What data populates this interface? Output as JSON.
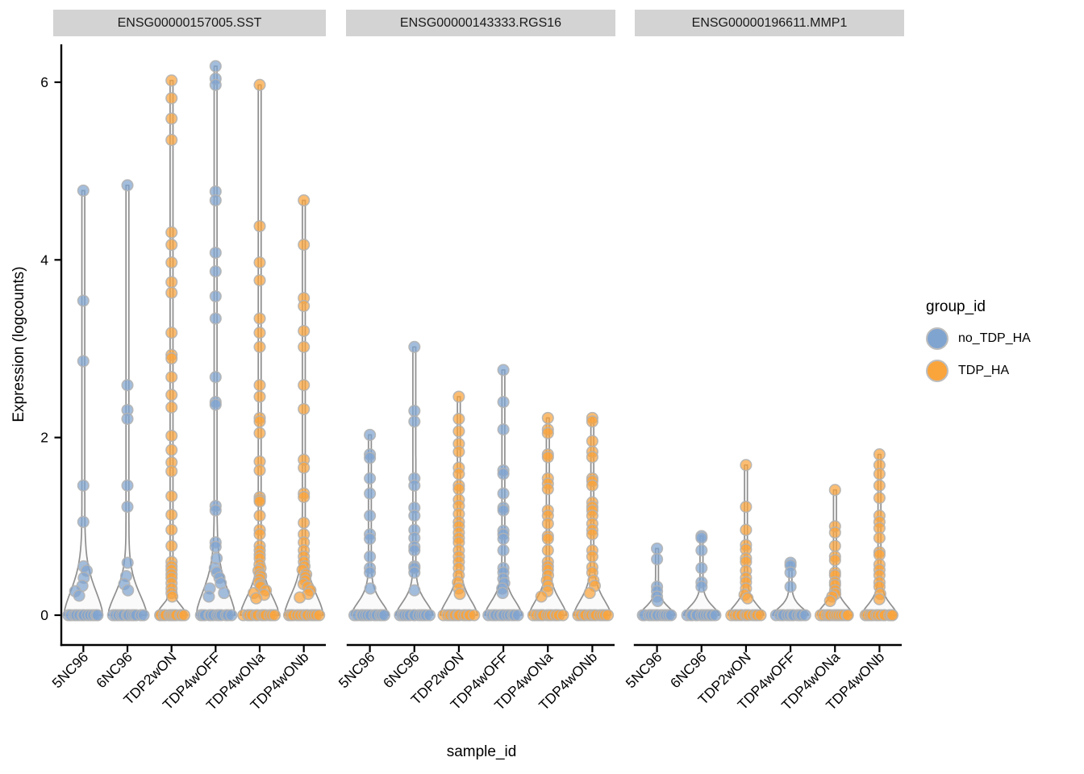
{
  "axes": {
    "x_title": "sample_id",
    "y_title": "Expression (logcounts)",
    "y_ticks": [
      0,
      2,
      4,
      6
    ],
    "x_categories": [
      "5NC96",
      "6NC96",
      "TDP2wON",
      "TDP4wOFF",
      "TDP4wONa",
      "TDP4wONb"
    ]
  },
  "legend": {
    "title": "group_id",
    "items": [
      {
        "label": "no_TDP_HA",
        "color": "#80A4D0"
      },
      {
        "label": "TDP_HA",
        "color": "#FAA43C"
      }
    ]
  },
  "style": {
    "violin_fill": "#FAFAFA",
    "violin_stroke": "#8F8F8F",
    "point_stroke": "#B3B3B3",
    "axis_color": "#000000",
    "strip_bg": "#D3D3D3"
  },
  "chart_data": {
    "type": "violin",
    "subtype": "violin with jittered points, faceted by gene",
    "x_label": "sample_id",
    "y_label": "Expression (logcounts)",
    "ylim": [
      0,
      6.4
    ],
    "y_ticks": [
      0,
      2,
      4,
      6
    ],
    "legend_position": "right",
    "facets": [
      {
        "gene": "ENSG00000157005.SST",
        "violins": [
          {
            "sample": "5NC96",
            "group": "no_TDP_HA",
            "zero_count": 12,
            "shape": {
              "max_halfwidth": 24,
              "taper": 0.42
            },
            "values": [
              4.78,
              3.54,
              2.86,
              1.46,
              1.05,
              0.55,
              0.5,
              0.42,
              0.33,
              0.27,
              0.22
            ]
          },
          {
            "sample": "6NC96",
            "group": "no_TDP_HA",
            "zero_count": 12,
            "shape": {
              "max_halfwidth": 24,
              "taper": 0.36
            },
            "values": [
              4.84,
              2.59,
              2.31,
              2.21,
              1.46,
              1.22,
              0.59,
              0.44,
              0.35,
              0.28
            ]
          },
          {
            "sample": "TDP2wON",
            "group": "TDP_HA",
            "zero_count": 12,
            "shape": {
              "max_halfwidth": 20,
              "taper": 0.14
            },
            "values": [
              6.02,
              5.82,
              5.59,
              5.35,
              4.31,
              4.17,
              3.97,
              3.75,
              3.63,
              3.18,
              2.93,
              2.89,
              2.68,
              2.48,
              2.34,
              2.02,
              1.86,
              1.72,
              1.62,
              1.34,
              1.13,
              0.96,
              0.78,
              0.6,
              0.55,
              0.51,
              0.46,
              0.42,
              0.36,
              0.3,
              0.25,
              0.21
            ]
          },
          {
            "sample": "TDP4wOFF",
            "group": "no_TDP_HA",
            "zero_count": 12,
            "shape": {
              "max_halfwidth": 24,
              "taper": 0.42
            },
            "values": [
              6.18,
              6.04,
              5.97,
              4.77,
              4.67,
              4.08,
              3.87,
              3.59,
              3.34,
              2.68,
              2.4,
              2.37,
              1.23,
              1.18,
              0.82,
              0.77,
              0.64,
              0.53,
              0.48,
              0.42,
              0.36,
              0.3,
              0.25,
              0.21
            ]
          },
          {
            "sample": "TDP4wONa",
            "group": "TDP_HA",
            "zero_count": 12,
            "shape": {
              "max_halfwidth": 24,
              "taper": 0.33
            },
            "values": [
              5.97,
              4.38,
              3.97,
              3.77,
              3.34,
              3.18,
              3.02,
              2.59,
              2.46,
              2.22,
              2.18,
              2.05,
              1.73,
              1.63,
              1.33,
              1.3,
              1.28,
              1.12,
              0.96,
              0.91,
              0.78,
              0.73,
              0.68,
              0.64,
              0.57,
              0.53,
              0.5,
              0.46,
              0.44,
              0.41,
              0.37,
              0.34,
              0.32,
              0.28,
              0.25,
              0.23,
              0.19
            ]
          },
          {
            "sample": "TDP4wONb",
            "group": "TDP_HA",
            "zero_count": 12,
            "shape": {
              "max_halfwidth": 24,
              "taper": 0.36
            },
            "values": [
              4.67,
              4.17,
              3.57,
              3.48,
              3.2,
              3.02,
              2.59,
              2.32,
              1.75,
              1.66,
              1.37,
              1.33,
              1.04,
              0.91,
              0.82,
              0.73,
              0.66,
              0.6,
              0.55,
              0.51,
              0.46,
              0.43,
              0.39,
              0.35,
              0.32,
              0.28,
              0.24,
              0.2
            ]
          }
        ]
      },
      {
        "gene": "ENSG00000143333.RGS16",
        "violins": [
          {
            "sample": "5NC96",
            "group": "no_TDP_HA",
            "zero_count": 12,
            "shape": {
              "max_halfwidth": 23,
              "taper": 0.22
            },
            "values": [
              2.03,
              1.81,
              1.77,
              1.54,
              1.37,
              1.12,
              0.91,
              0.86,
              0.66,
              0.53,
              0.48,
              0.3
            ]
          },
          {
            "sample": "6NC96",
            "group": "no_TDP_HA",
            "zero_count": 12,
            "shape": {
              "max_halfwidth": 23,
              "taper": 0.22
            },
            "values": [
              3.02,
              2.3,
              2.18,
              1.54,
              1.46,
              1.21,
              1.12,
              0.96,
              0.87,
              0.77,
              0.73,
              0.55,
              0.53,
              0.48,
              0.28
            ]
          },
          {
            "sample": "TDP2wON",
            "group": "TDP_HA",
            "zero_count": 12,
            "shape": {
              "max_halfwidth": 23,
              "taper": 0.26
            },
            "values": [
              2.46,
              2.21,
              2.07,
              1.93,
              1.84,
              1.66,
              1.59,
              1.46,
              1.42,
              1.3,
              1.23,
              1.14,
              1.05,
              1.0,
              0.93,
              0.87,
              0.82,
              0.73,
              0.66,
              0.6,
              0.53,
              0.45,
              0.37,
              0.3,
              0.24
            ]
          },
          {
            "sample": "TDP4wOFF",
            "group": "no_TDP_HA",
            "zero_count": 12,
            "shape": {
              "max_halfwidth": 23,
              "taper": 0.24
            },
            "values": [
              2.76,
              2.4,
              2.09,
              1.63,
              1.59,
              1.37,
              1.21,
              1.18,
              0.95,
              0.91,
              0.86,
              0.73,
              0.53,
              0.48,
              0.41,
              0.36,
              0.3,
              0.25
            ]
          },
          {
            "sample": "TDP4wONa",
            "group": "TDP_HA",
            "zero_count": 12,
            "shape": {
              "max_halfwidth": 23,
              "taper": 0.26
            },
            "values": [
              2.22,
              2.09,
              2.05,
              1.81,
              1.78,
              1.54,
              1.48,
              1.42,
              1.18,
              1.12,
              1.03,
              0.89,
              0.86,
              0.73,
              0.6,
              0.55,
              0.51,
              0.45,
              0.39,
              0.33,
              0.27,
              0.21
            ]
          },
          {
            "sample": "TDP4wONb",
            "group": "TDP_HA",
            "zero_count": 12,
            "shape": {
              "max_halfwidth": 23,
              "taper": 0.26
            },
            "values": [
              2.22,
              2.18,
              1.96,
              1.84,
              1.78,
              1.54,
              1.51,
              1.46,
              1.27,
              1.22,
              1.18,
              1.12,
              1.03,
              0.96,
              0.91,
              0.73,
              0.66,
              0.54,
              0.48,
              0.39,
              0.33,
              0.25
            ]
          }
        ]
      },
      {
        "gene": "ENSG00000196611.MMP1",
        "violins": [
          {
            "sample": "5NC96",
            "group": "no_TDP_HA",
            "zero_count": 12,
            "shape": {
              "max_halfwidth": 22,
              "taper": 0.14
            },
            "values": [
              0.75,
              0.63,
              0.32,
              0.27,
              0.21,
              0.16
            ]
          },
          {
            "sample": "6NC96",
            "group": "no_TDP_HA",
            "zero_count": 12,
            "shape": {
              "max_halfwidth": 22,
              "taper": 0.15
            },
            "values": [
              0.89,
              0.87,
              0.73,
              0.53,
              0.37,
              0.32
            ]
          },
          {
            "sample": "TDP2wON",
            "group": "TDP_HA",
            "zero_count": 12,
            "shape": {
              "max_halfwidth": 22,
              "taper": 0.17
            },
            "values": [
              1.69,
              1.22,
              0.96,
              0.79,
              0.74,
              0.64,
              0.6,
              0.5,
              0.42,
              0.37,
              0.3,
              0.23,
              0.19
            ]
          },
          {
            "sample": "TDP4wOFF",
            "group": "no_TDP_HA",
            "zero_count": 12,
            "shape": {
              "max_halfwidth": 22,
              "taper": 0.13
            },
            "values": [
              0.59,
              0.56,
              0.48,
              0.32
            ]
          },
          {
            "sample": "TDP4wONa",
            "group": "TDP_HA",
            "zero_count": 12,
            "shape": {
              "max_halfwidth": 22,
              "taper": 0.17
            },
            "values": [
              1.41,
              1.0,
              0.93,
              0.78,
              0.66,
              0.62,
              0.48,
              0.45,
              0.37,
              0.34,
              0.28,
              0.24,
              0.21,
              0.16
            ]
          },
          {
            "sample": "TDP4wONb",
            "group": "TDP_HA",
            "zero_count": 12,
            "shape": {
              "max_halfwidth": 22,
              "taper": 0.18
            },
            "values": [
              1.81,
              1.69,
              1.59,
              1.46,
              1.32,
              1.12,
              1.05,
              0.98,
              0.87,
              0.71,
              0.68,
              0.57,
              0.51,
              0.45,
              0.37,
              0.32,
              0.24,
              0.18
            ]
          }
        ]
      }
    ]
  }
}
